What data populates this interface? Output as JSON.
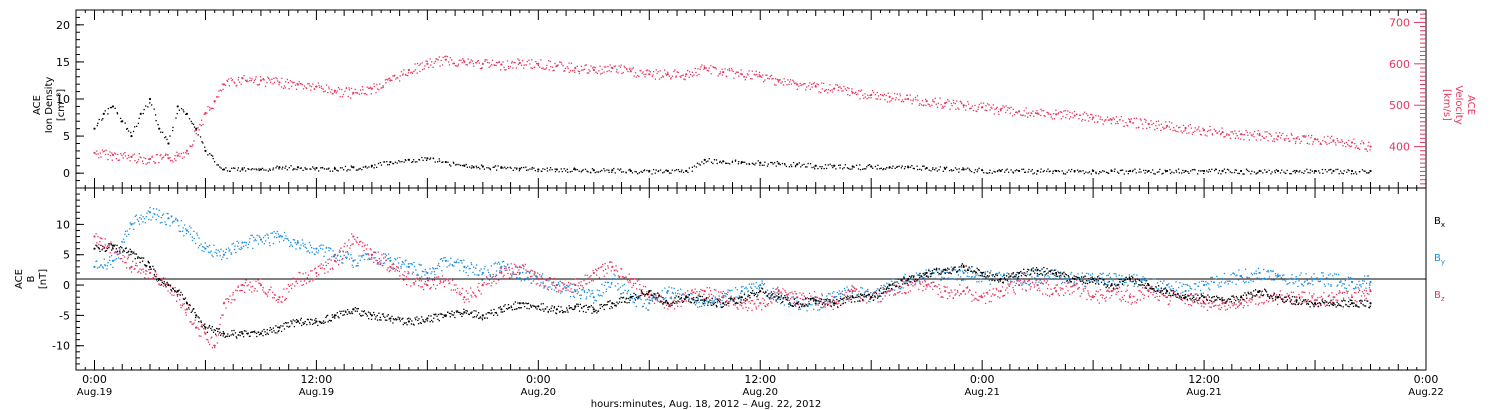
{
  "colors": {
    "black": "#000000",
    "pink": "#e8375f",
    "blue": "#1a8fe0"
  },
  "chart_data": [
    {
      "type": "scatter",
      "panel": "top",
      "y_left_label_lines": [
        "ACE",
        "Ion Density",
        "[cm⁻³]"
      ],
      "y_right_label_lines": [
        "ACE",
        "Velocity",
        "[km/s]"
      ],
      "ylim_left": [
        -2,
        22
      ],
      "yticks_left": [
        0,
        5,
        10,
        15,
        20
      ],
      "ylim_right": [
        300,
        730
      ],
      "yticks_right": [
        400,
        500,
        600,
        700
      ],
      "series": [
        {
          "axis": "left",
          "color": "#000000",
          "x": [
            0,
            1,
            2,
            3,
            4,
            5,
            6,
            7,
            8,
            9,
            10,
            11,
            12,
            14,
            16,
            18,
            20,
            22,
            24,
            26,
            28,
            30,
            32,
            34,
            36,
            38,
            40,
            41,
            42,
            44,
            46,
            48,
            50,
            52,
            54,
            56,
            58,
            60,
            62,
            64,
            66,
            68,
            70,
            72,
            74,
            76,
            78,
            80,
            82,
            84,
            86,
            88,
            90,
            92,
            94,
            96,
            98,
            100,
            102,
            104,
            106,
            108,
            110,
            112,
            114,
            116,
            118,
            120,
            122,
            124,
            126,
            128,
            130,
            132,
            134,
            136,
            138
          ],
          "y": [
            6,
            8,
            9,
            7,
            5,
            8,
            10,
            6,
            4,
            9,
            8,
            6,
            3,
            0.5,
            0.5,
            0.5,
            0.8,
            0.8,
            0.7,
            0.6,
            0.8,
            1.0,
            1.5,
            1.8,
            2.0,
            1.5,
            1.0,
            0.8,
            0.9,
            0.8,
            0.6,
            0.5,
            0.5,
            0.5,
            0.4,
            0.4,
            0.3,
            0.3,
            0.3,
            0.3,
            1.8,
            1.6,
            1.5,
            1.4,
            1.3,
            1.2,
            1.0,
            1.0,
            0.9,
            0.9,
            0.8,
            0.8,
            0.7,
            0.6,
            0.5,
            0.4,
            0.3,
            0.3,
            0.3,
            0.3,
            0.3,
            0.3,
            0.3,
            0.3,
            0.3,
            0.3,
            0.3,
            0.3,
            0.3,
            0.3,
            0.3,
            0.3,
            0.3,
            0.3,
            0.3,
            0.3,
            0.3
          ]
        },
        {
          "axis": "right",
          "color": "#e8375f",
          "x": [
            0,
            2,
            4,
            6,
            8,
            9,
            10,
            11,
            12,
            13,
            14,
            16,
            18,
            20,
            22,
            24,
            26,
            28,
            30,
            32,
            34,
            36,
            38,
            40,
            42,
            44,
            46,
            48,
            50,
            52,
            54,
            56,
            58,
            60,
            62,
            64,
            66,
            68,
            70,
            72,
            74,
            76,
            78,
            80,
            82,
            84,
            86,
            88,
            90,
            92,
            94,
            96,
            98,
            100,
            102,
            104,
            106,
            108,
            110,
            112,
            114,
            116,
            118,
            120,
            122,
            124,
            126,
            128,
            130,
            132,
            134,
            136,
            138
          ],
          "y": [
            385,
            380,
            375,
            370,
            372,
            378,
            390,
            440,
            480,
            510,
            550,
            565,
            560,
            555,
            550,
            545,
            535,
            530,
            540,
            560,
            585,
            600,
            610,
            605,
            600,
            598,
            602,
            600,
            595,
            590,
            585,
            590,
            582,
            575,
            575,
            575,
            590,
            580,
            575,
            570,
            560,
            550,
            545,
            540,
            530,
            525,
            520,
            515,
            510,
            505,
            500,
            495,
            490,
            485,
            480,
            478,
            475,
            470,
            465,
            460,
            455,
            450,
            445,
            440,
            435,
            430,
            428,
            425,
            420,
            418,
            415,
            410,
            400
          ]
        }
      ]
    },
    {
      "type": "scatter",
      "panel": "bottom",
      "y_label_lines": [
        "ACE",
        "B",
        "[nT]"
      ],
      "ylim": [
        -14,
        16
      ],
      "yticks": [
        -10,
        -5,
        0,
        5,
        10
      ],
      "legend_labels": [
        {
          "name": "B",
          "sub": "x",
          "color": "#000000"
        },
        {
          "name": "B",
          "sub": "y",
          "color": "#1a8fe0"
        },
        {
          "name": "B",
          "sub": "z",
          "color": "#e8375f"
        }
      ],
      "series": [
        {
          "component": "x",
          "color": "#000000",
          "x": [
            0,
            2,
            4,
            6,
            7,
            8,
            9,
            10,
            11,
            12,
            14,
            16,
            18,
            20,
            22,
            24,
            26,
            28,
            30,
            32,
            34,
            36,
            38,
            40,
            42,
            44,
            46,
            48,
            50,
            52,
            54,
            56,
            58,
            60,
            62,
            64,
            66,
            68,
            70,
            72,
            74,
            76,
            78,
            80,
            82,
            84,
            86,
            88,
            90,
            92,
            94,
            96,
            98,
            100,
            102,
            104,
            106,
            108,
            110,
            112,
            114,
            116,
            118,
            120,
            122,
            124,
            126,
            128,
            130,
            132,
            134,
            136,
            138
          ],
          "y": [
            6,
            6.5,
            5.5,
            3,
            1,
            0,
            -1,
            -3,
            -5,
            -7,
            -8,
            -8,
            -8,
            -7,
            -6,
            -6,
            -5,
            -4,
            -5,
            -5.5,
            -6,
            -5.5,
            -5,
            -4.5,
            -5,
            -4,
            -3,
            -3.5,
            -4,
            -3.5,
            -4,
            -3,
            -2,
            -1,
            -3,
            -2,
            -2.5,
            -3,
            -2,
            -1,
            -2,
            -3,
            -2.5,
            -3,
            -2,
            -2,
            0,
            1,
            2,
            2.5,
            3,
            2,
            1,
            2,
            2.5,
            2,
            1,
            1,
            0,
            1,
            0,
            -1,
            -2,
            -2,
            -2.5,
            -2,
            -1,
            -2,
            -2.5,
            -3,
            -3,
            -3,
            -3
          ]
        },
        {
          "component": "y",
          "color": "#1a8fe0",
          "x": [
            0,
            2,
            4,
            6,
            8,
            10,
            12,
            14,
            16,
            18,
            20,
            22,
            24,
            26,
            28,
            30,
            32,
            34,
            36,
            38,
            40,
            42,
            44,
            46,
            48,
            50,
            52,
            54,
            56,
            58,
            60,
            62,
            64,
            66,
            68,
            70,
            72,
            74,
            76,
            78,
            80,
            82,
            84,
            86,
            88,
            90,
            92,
            94,
            96,
            98,
            100,
            102,
            104,
            106,
            108,
            110,
            112,
            114,
            116,
            118,
            120,
            122,
            124,
            126,
            128,
            130,
            132,
            134,
            136,
            138
          ],
          "y": [
            3,
            4,
            10,
            12,
            11,
            9,
            6,
            5,
            7,
            7.5,
            8,
            7,
            6,
            5,
            4,
            5,
            4,
            3,
            2,
            4,
            3,
            2,
            3,
            2,
            1,
            0,
            -1,
            -2,
            1,
            -2,
            -3,
            -1,
            -2,
            -3,
            -2,
            -1,
            0,
            -2,
            -3,
            -3,
            -2,
            -1,
            -2,
            0,
            1,
            1.5,
            2,
            2,
            1.5,
            1,
            1,
            1.5,
            1.5,
            1,
            1,
            1,
            1,
            0,
            0,
            -1,
            0,
            1,
            1.5,
            2,
            1.5,
            1,
            1,
            1,
            0.5,
            0.5
          ]
        },
        {
          "component": "z",
          "color": "#e8375f",
          "x": [
            0,
            2,
            4,
            6,
            8,
            10,
            11,
            12,
            13,
            14,
            16,
            18,
            20,
            22,
            24,
            26,
            28,
            30,
            32,
            34,
            36,
            38,
            40,
            42,
            44,
            46,
            48,
            50,
            52,
            54,
            56,
            58,
            60,
            62,
            64,
            66,
            68,
            70,
            72,
            74,
            76,
            78,
            80,
            82,
            84,
            86,
            88,
            90,
            92,
            94,
            96,
            98,
            100,
            102,
            104,
            106,
            108,
            110,
            112,
            114,
            116,
            118,
            120,
            122,
            124,
            126,
            128,
            130,
            132,
            134,
            136,
            138
          ],
          "y": [
            8,
            6,
            3,
            2,
            0,
            -4,
            -7,
            -8,
            -10,
            -3,
            0,
            0,
            -2,
            1,
            2,
            4,
            8,
            5,
            3,
            1,
            0,
            1,
            -2,
            0,
            2,
            3,
            1,
            0,
            0,
            2,
            3,
            1,
            -2,
            -3,
            -2,
            -1,
            -2,
            -3,
            -3,
            -1,
            -2,
            -2,
            -3,
            -1,
            -2,
            -1,
            0,
            0,
            -1,
            -1,
            -2,
            -1,
            0,
            0,
            -1,
            0,
            -2,
            -1,
            -2,
            -1,
            -2,
            -2,
            -3,
            -3,
            -3,
            -2,
            -2,
            -2,
            -2.5,
            -2,
            -2,
            -1
          ]
        }
      ]
    }
  ],
  "x_axis": {
    "xlim_hours": [
      -2,
      144
    ],
    "major_ticks": [
      {
        "hour": 0,
        "time": "0:00",
        "date": "Aug.19"
      },
      {
        "hour": 24,
        "time": "12:00",
        "date": "Aug.19"
      },
      {
        "hour": 48,
        "time": "0:00",
        "date": "Aug.20"
      },
      {
        "hour": 72,
        "time": "12:00",
        "date": "Aug.20"
      },
      {
        "hour": 96,
        "time": "0:00",
        "date": "Aug.21"
      },
      {
        "hour": 120,
        "time": "12:00",
        "date": "Aug.21"
      },
      {
        "hour": 144,
        "time": "0:00",
        "date": "Aug.22"
      }
    ],
    "label": "hours:minutes, Aug. 18, 2012 – Aug. 22, 2012"
  }
}
